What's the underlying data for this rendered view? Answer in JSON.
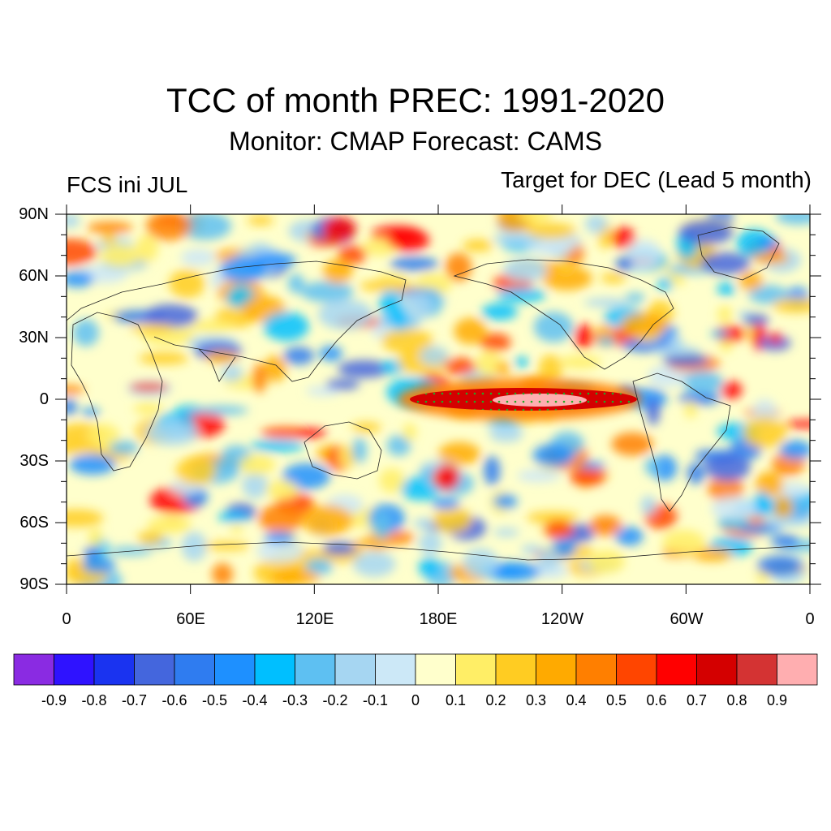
{
  "title": "TCC of month PREC: 1991-2020",
  "subtitle": "Monitor: CMAP   Forecast: CAMS",
  "left_label": "FCS ini JUL",
  "right_label": "Target for DEC (Lead 5 month)",
  "map": {
    "lat_labels": [
      "90N",
      "60N",
      "30N",
      "0",
      "30S",
      "60S",
      "90S"
    ],
    "lon_labels": [
      "0",
      "60E",
      "120E",
      "180E",
      "120W",
      "60W",
      "0"
    ]
  },
  "colorbar": {
    "colors": [
      "#8a2be2",
      "#2f12ff",
      "#1a33f0",
      "#4466dd",
      "#2f7cf0",
      "#1e90ff",
      "#00bfff",
      "#5ec0f2",
      "#a6d6f2",
      "#cce8f7",
      "#ffffcc",
      "#ffee66",
      "#ffcc22",
      "#ffaa00",
      "#ff7f00",
      "#ff4500",
      "#ff0000",
      "#d40000",
      "#d43333",
      "#ffaeb0"
    ],
    "labels": [
      "-0.9",
      "-0.8",
      "-0.7",
      "-0.6",
      "-0.5",
      "-0.4",
      "-0.3",
      "-0.2",
      "-0.1",
      "0",
      "0.1",
      "0.2",
      "0.3",
      "0.4",
      "0.5",
      "0.6",
      "0.7",
      "0.8",
      "0.9"
    ]
  }
}
